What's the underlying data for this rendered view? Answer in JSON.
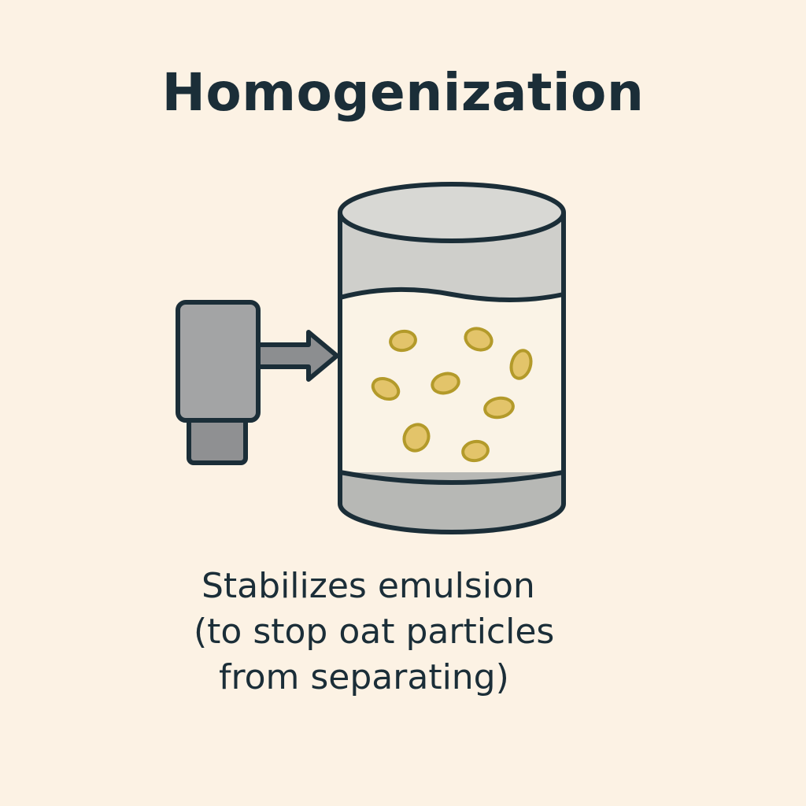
{
  "title": "Homogenization",
  "caption": {
    "line1": "Stabilizes emulsion",
    "line2": "(to stop oat particles",
    "line3": "from separating)"
  },
  "colors": {
    "background": "#fcf2e4",
    "outline": "#1b2e38",
    "tank_gray": "#cfcfcb",
    "tank_base_gray": "#b7b8b5",
    "liquid": "#faf3e6",
    "particle_fill": "#e3c46a",
    "particle_outline": "#b39a2a",
    "device_gray": "#9a9b9c",
    "arrow_gray": "#8c8e90"
  },
  "icons": {
    "device": "homogenizer-device-icon",
    "arrow": "flow-arrow-icon",
    "tank": "tank-icon",
    "particle": "oat-particle-icon"
  }
}
